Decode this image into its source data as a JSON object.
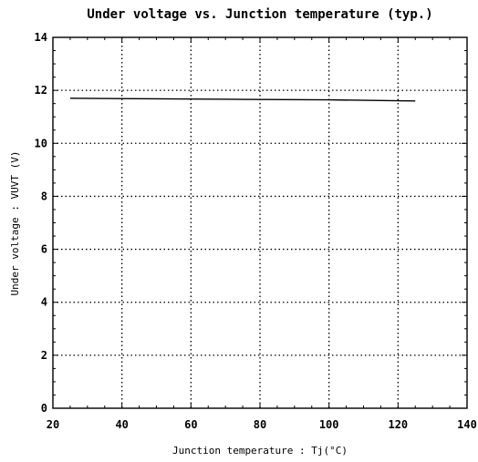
{
  "chart_data": {
    "type": "line",
    "title": "Under voltage vs. Junction temperature (typ.)",
    "xlabel": "Junction temperature : Tj(°C)",
    "ylabel": "Under voltage : VUVT (V)",
    "xlim": [
      20,
      140
    ],
    "ylim": [
      0,
      14
    ],
    "xticks": [
      20,
      40,
      60,
      80,
      100,
      120,
      140
    ],
    "yticks": [
      0,
      2,
      4,
      6,
      8,
      10,
      12,
      14
    ],
    "grid": true,
    "grid_style": "dotted",
    "legend": "none",
    "series": [
      {
        "x": [
          25,
          50,
          75,
          100,
          125
        ],
        "values": [
          11.7,
          11.68,
          11.66,
          11.64,
          11.6
        ],
        "color": "#000000"
      }
    ]
  }
}
